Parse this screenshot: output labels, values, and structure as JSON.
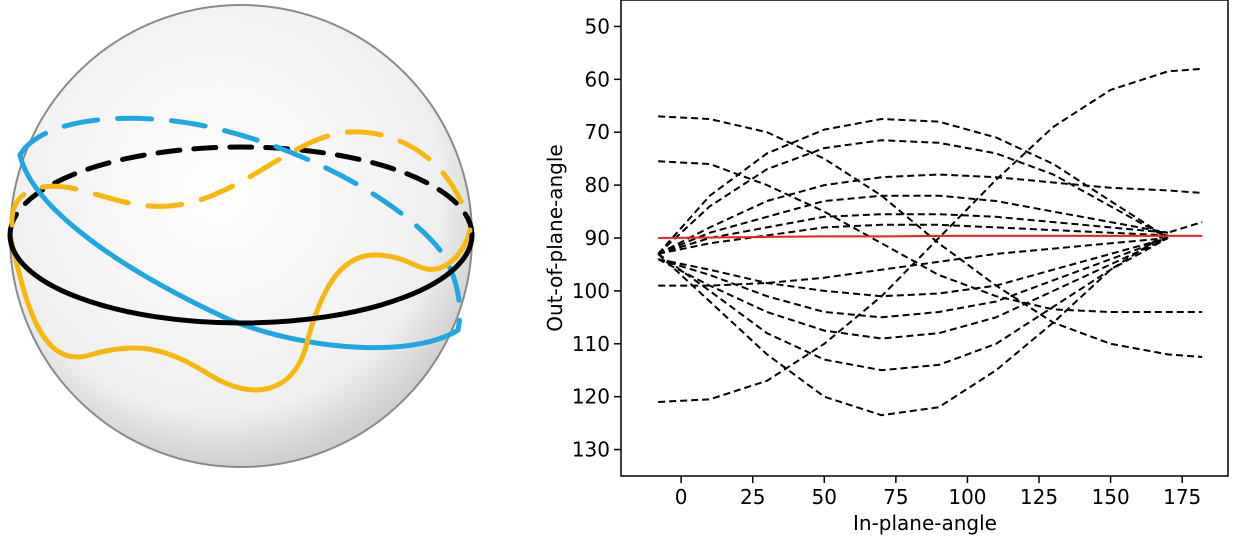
{
  "chart_data": {
    "type": "line",
    "xlabel": "In-plane-angle",
    "ylabel": "Out-of-plane-angle",
    "xlim": [
      -21,
      191
    ],
    "ylim": [
      135,
      45
    ],
    "xticks": [
      0,
      25,
      50,
      75,
      100,
      125,
      150,
      175
    ],
    "yticks": [
      50,
      60,
      70,
      80,
      90,
      100,
      110,
      120,
      130
    ],
    "x": [
      -8,
      10,
      30,
      50,
      70,
      90,
      110,
      130,
      150,
      170,
      182
    ],
    "series": [
      {
        "color": "#000000",
        "dash": true,
        "values": [
          121,
          120.5,
          117,
          110,
          101,
          90,
          79,
          69,
          62,
          58.5,
          58
        ]
      },
      {
        "color": "#000000",
        "dash": true,
        "values": [
          67,
          67.5,
          70,
          75,
          82,
          91,
          99,
          106,
          110,
          112,
          112.5
        ]
      },
      {
        "color": "#000000",
        "dash": true,
        "values": [
          75.5,
          76,
          80,
          85,
          91,
          97,
          101,
          103.5,
          104,
          104,
          104
        ]
      },
      {
        "color": "#000000",
        "dash": true,
        "values": [
          93,
          82,
          74,
          69.5,
          67.5,
          68,
          71,
          76,
          83,
          90,
          null
        ]
      },
      {
        "color": "#000000",
        "dash": true,
        "values": [
          93,
          84,
          77,
          73,
          71.5,
          72,
          74,
          78,
          84,
          90,
          null
        ]
      },
      {
        "color": "#000000",
        "dash": true,
        "values": [
          93,
          88,
          83,
          80,
          78.5,
          78,
          78.5,
          79.5,
          80.5,
          81,
          81.5
        ]
      },
      {
        "color": "#000000",
        "dash": true,
        "values": [
          93,
          89,
          86,
          83,
          82,
          82,
          83,
          85,
          87,
          89,
          null
        ]
      },
      {
        "color": "#000000",
        "dash": true,
        "values": [
          93,
          90,
          88,
          86,
          85.5,
          85.5,
          86,
          87,
          88,
          89,
          87
        ]
      },
      {
        "color": "#000000",
        "dash": true,
        "values": [
          93,
          91,
          89.5,
          88,
          87.5,
          87.5,
          88,
          88.5,
          89,
          89.5,
          null
        ]
      },
      {
        "color": "#000000",
        "dash": true,
        "values": [
          93,
          102,
          112,
          120,
          123.5,
          122,
          115,
          106,
          96,
          89,
          null
        ]
      },
      {
        "color": "#000000",
        "dash": true,
        "values": [
          93,
          100,
          108,
          113,
          115,
          114,
          110,
          103,
          96,
          90,
          null
        ]
      },
      {
        "color": "#000000",
        "dash": true,
        "values": [
          94,
          99,
          104,
          107.5,
          109,
          108,
          105,
          100,
          95,
          90,
          null
        ]
      },
      {
        "color": "#000000",
        "dash": true,
        "values": [
          94,
          97,
          101,
          104,
          105,
          104,
          102,
          98,
          94,
          90,
          null
        ]
      },
      {
        "color": "#000000",
        "dash": true,
        "values": [
          94,
          96,
          98.5,
          100,
          101,
          100.5,
          99,
          96,
          93,
          90,
          null
        ]
      },
      {
        "color": "#000000",
        "dash": true,
        "values": [
          99,
          99,
          98.5,
          97.5,
          96,
          94.5,
          93,
          92,
          91,
          90,
          null
        ]
      },
      {
        "color": "#e8231e",
        "dash": false,
        "values": [
          90,
          89.9,
          89.8,
          89.7,
          89.7,
          89.6,
          89.6,
          89.6,
          89.6,
          89.6,
          89.6
        ]
      }
    ]
  }
}
